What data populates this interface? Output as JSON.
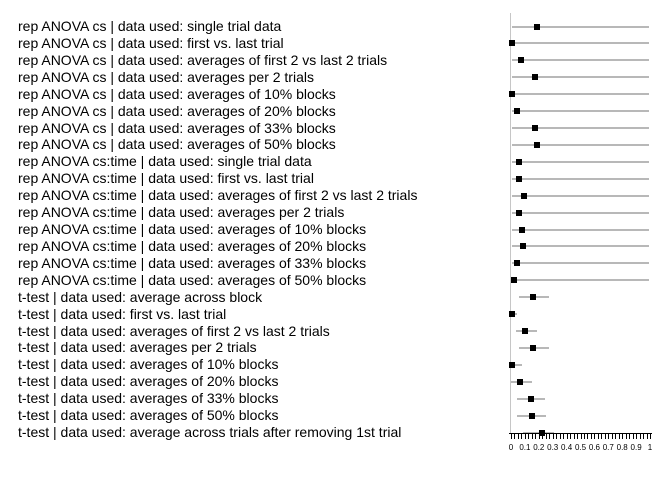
{
  "chart_data": {
    "type": "scatter",
    "subtype": "horizontal-dot-plot-with-error-bars",
    "title": "",
    "xlabel": "",
    "ylabel": "",
    "xlim": [
      0,
      1
    ],
    "x_major_tick_labels": [
      "0",
      "0.1",
      "0.2",
      "0.3",
      "0.4",
      "0.5",
      "0.6",
      "0.7",
      "0.8",
      "0.9",
      "1"
    ],
    "x_major_tick_values": [
      0,
      0.1,
      0.2,
      0.3,
      0.4,
      0.5,
      0.6,
      0.7,
      0.8,
      0.9,
      1
    ],
    "x_minor_tick_step": 0.025,
    "grid": false,
    "legend": "none",
    "marker_shape": "filled-square",
    "colors": {
      "marker": "#000000",
      "error_bar": "#b8b8b8",
      "axis_line": "#c6c6c6",
      "tick": "#000000",
      "text": "#000000",
      "background": "#ffffff"
    },
    "rows": [
      {
        "label": "rep ANOVA cs | data used: single trial data",
        "p": 0.19,
        "lo": 0.01,
        "hi": 0.99
      },
      {
        "label": "rep ANOVA cs | data used: first vs. last trial",
        "p": 0.005,
        "lo": 0.0,
        "hi": 0.99
      },
      {
        "label": "rep ANOVA cs | data used: averages of first 2 vs last 2 trials",
        "p": 0.07,
        "lo": 0.005,
        "hi": 0.99
      },
      {
        "label": "rep ANOVA cs | data used: averages per 2 trials",
        "p": 0.175,
        "lo": 0.01,
        "hi": 0.99
      },
      {
        "label": "rep ANOVA cs | data used: averages of 10% blocks",
        "p": 0.005,
        "lo": 0.0,
        "hi": 0.99
      },
      {
        "label": "rep ANOVA cs | data used: averages of 20% blocks",
        "p": 0.045,
        "lo": 0.005,
        "hi": 0.99
      },
      {
        "label": "rep ANOVA cs | data used: averages of 33% blocks",
        "p": 0.17,
        "lo": 0.01,
        "hi": 0.99
      },
      {
        "label": "rep ANOVA cs | data used: averages of 50% blocks",
        "p": 0.185,
        "lo": 0.01,
        "hi": 0.99
      },
      {
        "label": "rep ANOVA cs:time | data used: single trial data",
        "p": 0.055,
        "lo": 0.005,
        "hi": 0.99
      },
      {
        "label": "rep ANOVA cs:time | data used: first vs. last trial",
        "p": 0.055,
        "lo": 0.005,
        "hi": 0.99
      },
      {
        "label": "rep ANOVA cs:time | data used: averages of first 2 vs last 2 trials",
        "p": 0.095,
        "lo": 0.005,
        "hi": 0.99
      },
      {
        "label": "rep ANOVA cs:time | data used: averages per 2 trials",
        "p": 0.055,
        "lo": 0.005,
        "hi": 0.99
      },
      {
        "label": "rep ANOVA cs:time | data used: averages of 10% blocks",
        "p": 0.08,
        "lo": 0.005,
        "hi": 0.99
      },
      {
        "label": "rep ANOVA cs:time | data used: averages of 20% blocks",
        "p": 0.085,
        "lo": 0.005,
        "hi": 0.99
      },
      {
        "label": "rep ANOVA cs:time | data used: averages of 33% blocks",
        "p": 0.045,
        "lo": 0.005,
        "hi": 0.99
      },
      {
        "label": "rep ANOVA cs:time | data used: averages of 50% blocks",
        "p": 0.02,
        "lo": 0.0,
        "hi": 0.99
      },
      {
        "label": "t-test | data used: average across block",
        "p": 0.155,
        "lo": 0.06,
        "hi": 0.27
      },
      {
        "label": "t-test | data used: first vs. last trial",
        "p": 0.005,
        "lo": 0.0,
        "hi": 0.04
      },
      {
        "label": "t-test | data used: averages of first 2 vs last 2 trials",
        "p": 0.1,
        "lo": 0.035,
        "hi": 0.19
      },
      {
        "label": "t-test | data used: averages per 2 trials",
        "p": 0.155,
        "lo": 0.06,
        "hi": 0.27
      },
      {
        "label": "t-test | data used: averages of 10% blocks",
        "p": 0.01,
        "lo": 0.0,
        "hi": 0.08
      },
      {
        "label": "t-test | data used: averages of 20% blocks",
        "p": 0.065,
        "lo": 0.0,
        "hi": 0.15
      },
      {
        "label": "t-test | data used: averages of 33% blocks",
        "p": 0.145,
        "lo": 0.045,
        "hi": 0.245
      },
      {
        "label": "t-test | data used: averages of 50% blocks",
        "p": 0.15,
        "lo": 0.045,
        "hi": 0.25
      },
      {
        "label": "t-test | data used: average across trials after removing 1st trial",
        "p": 0.22,
        "lo": 0.085,
        "hi": 0.31
      }
    ]
  }
}
